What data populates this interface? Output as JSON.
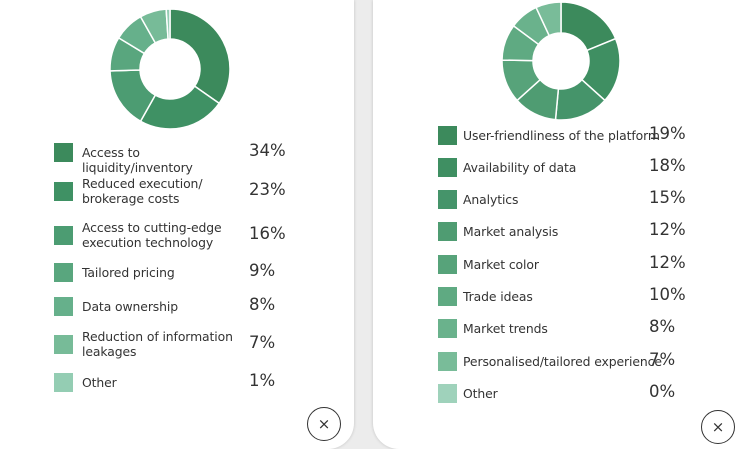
{
  "chart_data": [
    {
      "type": "pie",
      "categories": [
        "Access to liquidity/inventory",
        "Reduced execution/ brokerage costs",
        "Access to cutting-edge execution technology",
        "Tailored pricing",
        "Data ownership",
        "Reduction of information leakages",
        "Other"
      ],
      "values": [
        34,
        23,
        16,
        9,
        8,
        7,
        1
      ],
      "value_labels": [
        "34%",
        "23%",
        "16%",
        "9%",
        "8%",
        "7%",
        "1%"
      ],
      "colors": [
        "#3c8a5c",
        "#3f9164",
        "#4c9c72",
        "#59a67e",
        "#66b08b",
        "#77bb98",
        "#94cdb3"
      ]
    },
    {
      "type": "pie",
      "categories": [
        "User-friendliness of the platform",
        "Availability of data",
        "Analytics",
        "Market analysis",
        "Market color",
        "Trade ideas",
        "Market trends",
        "Personalised/tailored experience",
        "Other"
      ],
      "values": [
        19,
        18,
        15,
        12,
        12,
        10,
        8,
        7,
        0
      ],
      "value_labels": [
        "19%",
        "18%",
        "15%",
        "12%",
        "12%",
        "10%",
        "8%",
        "7%",
        "0%"
      ],
      "colors": [
        "#3c8a5c",
        "#3f8f62",
        "#45946a",
        "#4f9c72",
        "#57a37a",
        "#5faa82",
        "#6ab28c",
        "#79bc99",
        "#9fd2bb"
      ]
    }
  ],
  "close_glyph": "×"
}
